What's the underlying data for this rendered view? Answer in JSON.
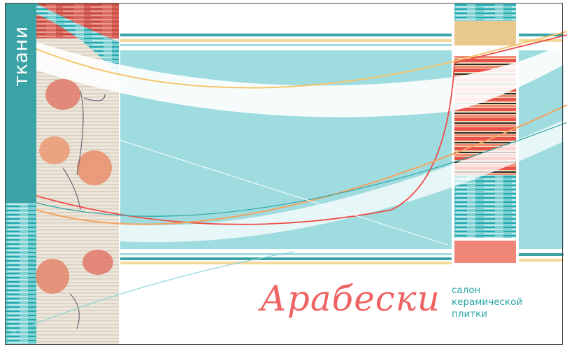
{
  "side_label": "ткани",
  "brand": {
    "name": "Арабески",
    "tagline": [
      "салон",
      "керамической",
      "плитки"
    ]
  },
  "colors": {
    "teal": "#3aa3a6",
    "turquoise": "#9fdcdf",
    "coral": "#ee6363",
    "orange": "#f4b26a",
    "cream": "#ede6da"
  }
}
